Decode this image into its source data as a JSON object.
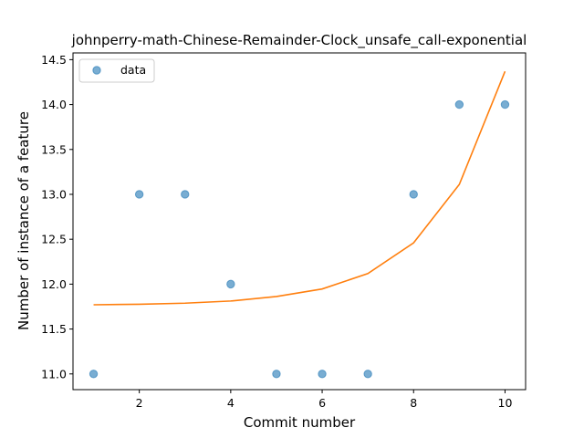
{
  "chart_data": {
    "type": "scatter",
    "title": "johnperry-math-Chinese-Remainder-Clock_unsafe_call-exponential",
    "xlabel": "Commit number",
    "ylabel": "Number of instance of a feature",
    "xlim": [
      0.55,
      10.45
    ],
    "ylim": [
      10.825,
      14.575
    ],
    "xticks": [
      2,
      4,
      6,
      8,
      10
    ],
    "yticks": [
      11.0,
      11.5,
      12.0,
      12.5,
      13.0,
      13.5,
      14.0,
      14.5
    ],
    "xtick_labels": [
      "2",
      "4",
      "6",
      "8",
      "10"
    ],
    "ytick_labels": [
      "11.0",
      "11.5",
      "12.0",
      "12.5",
      "13.0",
      "13.5",
      "14.0",
      "14.5"
    ],
    "grid": false,
    "legend": {
      "position": "upper-left",
      "entries": [
        "data"
      ]
    },
    "series": [
      {
        "name": "data",
        "kind": "scatter",
        "color": "#1f77b4",
        "x": [
          1,
          2,
          3,
          4,
          5,
          6,
          7,
          8,
          9,
          10
        ],
        "y": [
          11,
          13,
          13,
          12,
          11,
          11,
          11,
          13,
          14,
          14
        ]
      },
      {
        "kind": "line",
        "color": "#ff7f0e",
        "x": [
          1,
          2,
          3,
          4,
          5,
          6,
          7,
          8,
          9,
          10
        ],
        "y": [
          11.77,
          11.776,
          11.788,
          11.812,
          11.862,
          11.946,
          12.118,
          12.46,
          13.11,
          14.37
        ]
      }
    ]
  }
}
